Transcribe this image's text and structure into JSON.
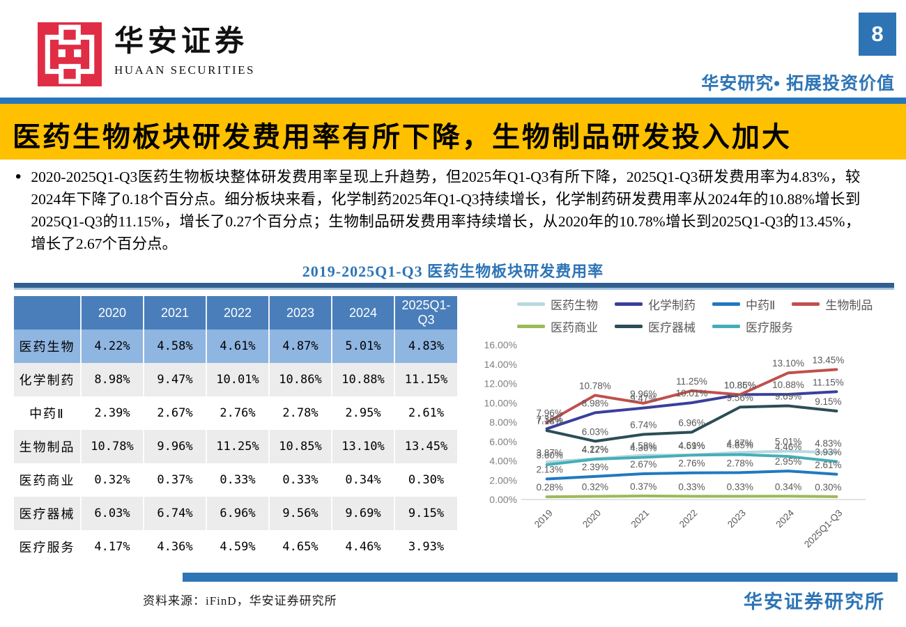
{
  "page": {
    "number": "8",
    "tagline": "华安研究• 拓展投资价值"
  },
  "brand": {
    "name_cn": "华安证券",
    "name_en": "HUAAN SECURITIES",
    "seal_color": "#e02c44"
  },
  "banner": {
    "title": "医药生物板块研发费用率有所下降，生物制品研发投入加大",
    "bg": "#ffc000"
  },
  "body": {
    "bullet": "•",
    "paragraph": "2020-2025Q1-Q3医药生物板块整体研发费用率呈现上升趋势，但2025年Q1-Q3有所下降，2025Q1-Q3研发费用率为4.83%，较2024年下降了0.18个百分点。细分板块来看，化学制药2025年Q1-Q3持续增长，化学制药研发费用率从2024年的10.88%增长到2025Q1-Q3的11.15%，增长了0.27个百分点；生物制品研发费用率持续增长，从2020年的10.78%增长到2025Q1-Q3的13.45%，增长了2.67个百分点。"
  },
  "figure_title": "2019-2025Q1-Q3 医药生物板块研发费用率",
  "table": {
    "columns": [
      "",
      "2020",
      "2021",
      "2022",
      "2023",
      "2024",
      "2025Q1-Q3"
    ],
    "rows": [
      {
        "label": "医药生物",
        "highlight": true,
        "values": [
          "4.22%",
          "4.58%",
          "4.61%",
          "4.87%",
          "5.01%",
          "4.83%"
        ]
      },
      {
        "label": "化学制药",
        "highlight": false,
        "values": [
          "8.98%",
          "9.47%",
          "10.01%",
          "10.86%",
          "10.88%",
          "11.15%"
        ]
      },
      {
        "label": "中药Ⅱ",
        "highlight": false,
        "values": [
          "2.39%",
          "2.67%",
          "2.76%",
          "2.78%",
          "2.95%",
          "2.61%"
        ]
      },
      {
        "label": "生物制品",
        "highlight": false,
        "values": [
          "10.78%",
          "9.96%",
          "11.25%",
          "10.85%",
          "13.10%",
          "13.45%"
        ]
      },
      {
        "label": "医药商业",
        "highlight": false,
        "values": [
          "0.32%",
          "0.37%",
          "0.33%",
          "0.33%",
          "0.34%",
          "0.30%"
        ]
      },
      {
        "label": "医疗器械",
        "highlight": false,
        "values": [
          "6.03%",
          "6.74%",
          "6.96%",
          "9.56%",
          "9.69%",
          "9.15%"
        ]
      },
      {
        "label": "医疗服务",
        "highlight": false,
        "values": [
          "4.17%",
          "4.36%",
          "4.59%",
          "4.65%",
          "4.46%",
          "3.93%"
        ]
      }
    ]
  },
  "chart_data": {
    "type": "line",
    "categories": [
      "2019",
      "2020",
      "2021",
      "2022",
      "2023",
      "2024",
      "2025Q1-Q3"
    ],
    "series": [
      {
        "name": "医药生物",
        "color": "#b7d9de",
        "values": [
          3.87,
          4.22,
          4.58,
          4.61,
          4.87,
          5.01,
          4.83
        ]
      },
      {
        "name": "化学制药",
        "color": "#3a3f9c",
        "values": [
          7.32,
          8.98,
          9.47,
          10.01,
          10.86,
          10.88,
          11.15
        ]
      },
      {
        "name": "中药Ⅱ",
        "color": "#2079c0",
        "values": [
          2.13,
          2.39,
          2.67,
          2.76,
          2.78,
          2.95,
          2.61
        ]
      },
      {
        "name": "生物制品",
        "color": "#c0504d",
        "values": [
          7.96,
          10.78,
          9.96,
          11.25,
          10.85,
          13.1,
          13.45
        ]
      },
      {
        "name": "医药商业",
        "color": "#9cba58",
        "values": [
          0.28,
          0.32,
          0.37,
          0.33,
          0.33,
          0.34,
          0.3
        ]
      },
      {
        "name": "医疗器械",
        "color": "#2c4d56",
        "values": [
          7.13,
          6.03,
          6.74,
          6.96,
          9.56,
          9.69,
          9.15
        ]
      },
      {
        "name": "医疗服务",
        "color": "#45aeb7",
        "values": [
          3.6,
          4.17,
          4.36,
          4.59,
          4.65,
          4.46,
          3.93
        ]
      }
    ],
    "ylim": [
      0,
      16
    ],
    "ytick_step": 2,
    "ytick_format": "0.00%",
    "data_labels": true,
    "legend_position": "top",
    "legend_rows": [
      [
        0,
        1,
        2,
        3
      ],
      [
        4,
        5,
        6
      ]
    ],
    "grid": false
  },
  "footer": {
    "source": "资料来源：iFinD，华安证券研究所",
    "institute": "华安证券研究所"
  }
}
